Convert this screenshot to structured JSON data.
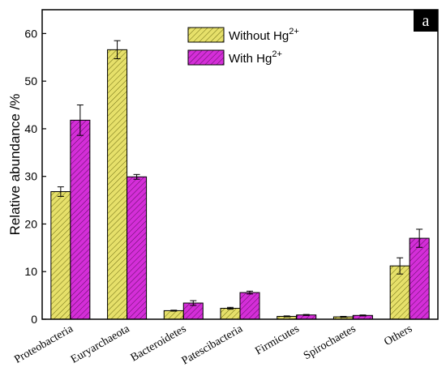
{
  "chart_data": {
    "type": "bar",
    "panel_label": "a",
    "ylabel": "Relative abundance /%",
    "xlabel": "",
    "ylim": [
      0,
      65
    ],
    "yticks": [
      0,
      10,
      20,
      30,
      40,
      50,
      60
    ],
    "grid": false,
    "legend_position": "top-right",
    "categories": [
      "Proteobacteria",
      "Euryarchaeota",
      "Bacteroidetes",
      "Patescibacteria",
      "Firmicutes",
      "Spirochaetes",
      "Others"
    ],
    "series": [
      {
        "name": "Without Hg2+",
        "name_base": "Without Hg",
        "name_sup": "2+",
        "color": "#e6e06a",
        "hatch": "#6b6a10",
        "values": [
          26.8,
          56.6,
          1.8,
          2.3,
          0.6,
          0.5,
          11.2
        ],
        "errors": [
          1.0,
          1.9,
          0.1,
          0.2,
          0.1,
          0.1,
          1.7
        ]
      },
      {
        "name": "With Hg2+",
        "name_base": "With Hg",
        "name_sup": "2+",
        "color": "#d42ed8",
        "hatch": "#5b0b5e",
        "values": [
          41.8,
          29.9,
          3.4,
          5.6,
          0.9,
          0.8,
          17.0
        ],
        "errors": [
          3.2,
          0.5,
          0.5,
          0.3,
          0.1,
          0.1,
          1.9
        ]
      }
    ]
  }
}
